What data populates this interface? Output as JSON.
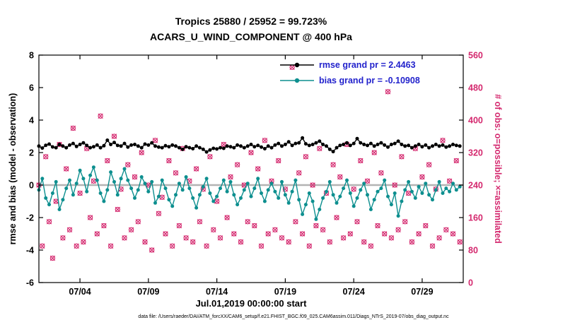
{
  "title": {
    "line1": "Tropics 25880 / 25952 = 99.723%",
    "line2": "ACARS_U_WIND_COMPONENT @ 400 hPa",
    "region": "Tropics",
    "obs_assimilated_total": 25880,
    "obs_possible_total": 25952,
    "percent_assimilated": 99.723,
    "variable": "ACARS_U_WIND_COMPONENT",
    "level": "400 hPa"
  },
  "legend": {
    "text_color": "#2222cc",
    "items": [
      {
        "label": "rmse grand pr = 2.4463",
        "color": "#000000"
      },
      {
        "label": "bias grand pr = -0.10908",
        "color": "#0d8f8f"
      }
    ]
  },
  "caption": {
    "text": "data file: /Users/raeder/DAI/ATM_forcXX/CAM6_setup/f.e21.FHIST_BGC.f09_025.CAM6assim.011/Diags_NTrS_2019-07/obs_diag_output.nc"
  },
  "chart_data": {
    "type": "line",
    "title_lines": [
      "Tropics 25880 / 25952 = 99.723%",
      "ACARS_U_WIND_COMPONENT @ 400 hPa"
    ],
    "x": {
      "xlabel": "Jul.01,2019 00:00:00 start",
      "xlim": [
        0,
        31
      ],
      "start_day": 0,
      "step_days": 0.25,
      "tick_days": [
        3,
        8,
        13,
        18,
        23,
        28
      ],
      "tick_labels": [
        "07/04",
        "07/09",
        "07/14",
        "07/19",
        "07/24",
        "07/29"
      ]
    },
    "left_axis": {
      "label": "rmse and bias (model - observation)",
      "lim": [
        -6,
        8
      ],
      "ticks": [
        -6,
        -4,
        -2,
        0,
        2,
        4,
        6,
        8
      ],
      "zero_line": true,
      "zero_line_color": "#b3b3b3"
    },
    "right_axis": {
      "label": "# of obs: o=possible; ×=assimilated",
      "lim": [
        0,
        560
      ],
      "ticks": [
        0,
        80,
        160,
        240,
        320,
        400,
        480,
        560
      ],
      "color": "#d4286e"
    },
    "series": [
      {
        "name": "rmse",
        "axis": "left",
        "color": "#000000",
        "marker": "dot",
        "grand_pr": 2.4463,
        "values": [
          2.4,
          2.28,
          2.45,
          2.52,
          2.35,
          2.3,
          2.5,
          2.4,
          2.3,
          2.46,
          2.56,
          2.38,
          2.5,
          2.6,
          2.44,
          2.3,
          2.36,
          2.46,
          2.3,
          2.42,
          2.76,
          2.5,
          2.62,
          2.44,
          2.4,
          2.56,
          2.34,
          2.46,
          2.5,
          2.4,
          2.3,
          2.52,
          2.46,
          2.6,
          2.4,
          2.34,
          2.3,
          2.42,
          2.36,
          2.46,
          2.4,
          2.3,
          2.2,
          2.36,
          2.3,
          2.24,
          2.4,
          2.3,
          2.2,
          2.04,
          2.16,
          2.26,
          2.22,
          2.3,
          2.26,
          2.4,
          2.36,
          2.3,
          2.46,
          2.4,
          2.3,
          2.4,
          2.5,
          2.36,
          2.44,
          2.34,
          2.24,
          2.4,
          2.3,
          2.46,
          2.56,
          2.4,
          2.5,
          2.66,
          2.44,
          2.56,
          2.6,
          2.9,
          2.54,
          2.44,
          2.5,
          2.6,
          2.7,
          2.5,
          2.4,
          2.2,
          2.06,
          2.3,
          2.44,
          2.5,
          2.6,
          2.44,
          2.56,
          2.86,
          2.6,
          2.5,
          2.44,
          2.56,
          2.4,
          2.5,
          2.6,
          2.46,
          2.34,
          2.5,
          2.56,
          2.7,
          2.5,
          2.4,
          2.44,
          2.3,
          2.4,
          2.5,
          2.36,
          2.46,
          2.3,
          2.4,
          2.5,
          2.4,
          2.46,
          2.34,
          2.4,
          2.5,
          2.44,
          2.4
        ]
      },
      {
        "name": "bias",
        "axis": "left",
        "color": "#0d8f8f",
        "marker": "dot",
        "grand_pr": -0.10908,
        "values": [
          -0.3,
          0.4,
          -0.8,
          -1.2,
          -0.5,
          0.2,
          -1.5,
          -0.9,
          -0.2,
          0.3,
          -0.6,
          0.1,
          0.9,
          0.4,
          -0.4,
          0.6,
          1.1,
          0.3,
          -0.5,
          -1.0,
          -0.3,
          0.8,
          0.2,
          -0.6,
          0.4,
          1.0,
          0.3,
          -0.2,
          -0.8,
          -0.3,
          0.5,
          0.1,
          -0.4,
          0.2,
          -1.1,
          -0.7,
          0.3,
          -0.2,
          -0.9,
          -1.3,
          -0.6,
          0.1,
          -0.3,
          0.5,
          -0.2,
          -0.8,
          -1.4,
          -0.6,
          -0.1,
          0.4,
          -0.5,
          -1.0,
          -0.7,
          -0.2,
          0.3,
          -0.4,
          0.2,
          -0.6,
          -1.2,
          -0.8,
          -0.3,
          0.1,
          -0.7,
          -0.2,
          0.4,
          -0.5,
          -1.0,
          -0.3,
          0.1,
          -0.4,
          -0.8,
          0.2,
          -0.6,
          -1.1,
          -0.4,
          0.3,
          -0.9,
          -1.8,
          -1.2,
          -0.5,
          -1.0,
          -2.1,
          -1.5,
          -0.8,
          -0.4,
          0.2,
          -0.6,
          -1.1,
          -0.7,
          -0.2,
          0.3,
          -0.5,
          -1.3,
          -0.8,
          -0.3,
          0.1,
          -0.6,
          -1.5,
          -0.9,
          -0.4,
          -0.2,
          0.3,
          -0.7,
          -1.2,
          -0.5,
          -1.9,
          -1.0,
          -0.3,
          0.2,
          -0.4,
          -0.8,
          -0.1,
          -0.5,
          0.1,
          -0.6,
          -0.9,
          -0.3,
          0.2,
          -0.5,
          -0.2,
          -0.4,
          0.1,
          -0.3,
          -0.1
        ]
      },
      {
        "name": "observations possible",
        "axis": "right",
        "color": "#d4286e",
        "marker": "o",
        "values": [
          240,
          90,
          310,
          150,
          60,
          200,
          340,
          110,
          280,
          130,
          380,
          90,
          220,
          100,
          330,
          160,
          250,
          120,
          410,
          140,
          300,
          90,
          360,
          180,
          230,
          110,
          290,
          130,
          260,
          150,
          320,
          100,
          240,
          80,
          350,
          170,
          210,
          120,
          300,
          90,
          270,
          140,
          330,
          110,
          250,
          100,
          280,
          150,
          230,
          90,
          310,
          130,
          200,
          110,
          340,
          160,
          260,
          120,
          290,
          100,
          240,
          150,
          320,
          140,
          280,
          90,
          350,
          120,
          250,
          130,
          300,
          110,
          230,
          100,
          530,
          150,
          270,
          120,
          310,
          90,
          240,
          140,
          330,
          130,
          220,
          100,
          290,
          160,
          260,
          110,
          340,
          120,
          230,
          150,
          300,
          100,
          250,
          90,
          320,
          140,
          270,
          120,
          470,
          110,
          240,
          130,
          310,
          150,
          220,
          100,
          330,
          120,
          260,
          140,
          290,
          90,
          230,
          110,
          350,
          130,
          250,
          120,
          300,
          100
        ]
      },
      {
        "name": "observations assimilated",
        "axis": "right",
        "color": "#d4286e",
        "marker": "x",
        "values_same_as": "observations possible"
      }
    ]
  }
}
